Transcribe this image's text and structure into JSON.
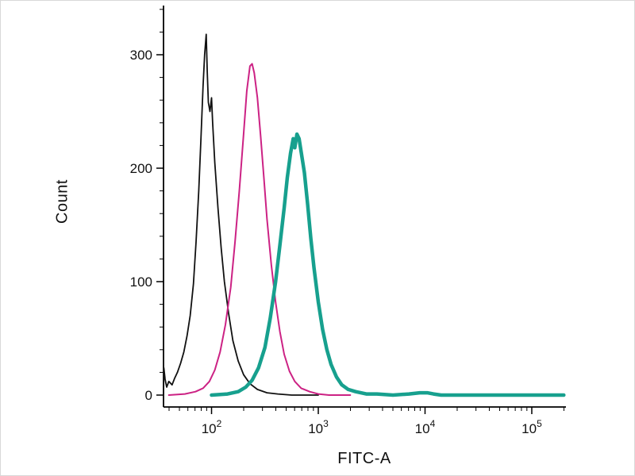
{
  "chart_data": {
    "type": "line",
    "chart_kind": "flow-cytometry-histogram-overlay",
    "title": "",
    "xlabel": "FITC-A",
    "ylabel": "Count",
    "legend": "none",
    "grid": false,
    "x_axis": {
      "scale": "log10",
      "log_min": 1.55,
      "log_max": 5.32,
      "major_tick_exponents": [
        2,
        3,
        4,
        5
      ],
      "tick_label_base": "10"
    },
    "y_axis": {
      "min": 0,
      "max": 340,
      "major_ticks": [
        0,
        100,
        200,
        300
      ],
      "minor_tick_step": 20
    },
    "axis_color": "#000000",
    "series": [
      {
        "name": "black-curve",
        "color": "#111111",
        "stroke_width": 1.8,
        "points": [
          [
            1.55,
            0
          ],
          [
            1.553,
            24
          ],
          [
            1.565,
            14
          ],
          [
            1.58,
            7
          ],
          [
            1.6,
            12
          ],
          [
            1.63,
            9
          ],
          [
            1.655,
            15
          ],
          [
            1.68,
            20
          ],
          [
            1.71,
            28
          ],
          [
            1.74,
            38
          ],
          [
            1.77,
            52
          ],
          [
            1.8,
            70
          ],
          [
            1.83,
            98
          ],
          [
            1.855,
            135
          ],
          [
            1.88,
            180
          ],
          [
            1.9,
            225
          ],
          [
            1.92,
            272
          ],
          [
            1.935,
            300
          ],
          [
            1.95,
            318
          ],
          [
            1.96,
            285
          ],
          [
            1.97,
            258
          ],
          [
            1.985,
            250
          ],
          [
            2.0,
            262
          ],
          [
            2.01,
            240
          ],
          [
            2.03,
            205
          ],
          [
            2.06,
            165
          ],
          [
            2.09,
            130
          ],
          [
            2.12,
            100
          ],
          [
            2.16,
            72
          ],
          [
            2.2,
            48
          ],
          [
            2.25,
            30
          ],
          [
            2.3,
            18
          ],
          [
            2.36,
            10
          ],
          [
            2.43,
            5
          ],
          [
            2.52,
            2
          ],
          [
            2.62,
            1
          ],
          [
            2.75,
            0
          ],
          [
            3.0,
            0
          ]
        ]
      },
      {
        "name": "magenta-curve",
        "color": "#cc2284",
        "stroke_width": 2,
        "points": [
          [
            1.6,
            0
          ],
          [
            1.75,
            1
          ],
          [
            1.85,
            3
          ],
          [
            1.92,
            6
          ],
          [
            1.98,
            12
          ],
          [
            2.03,
            22
          ],
          [
            2.08,
            38
          ],
          [
            2.13,
            62
          ],
          [
            2.18,
            95
          ],
          [
            2.22,
            135
          ],
          [
            2.26,
            180
          ],
          [
            2.3,
            230
          ],
          [
            2.33,
            268
          ],
          [
            2.36,
            290
          ],
          [
            2.38,
            292
          ],
          [
            2.4,
            284
          ],
          [
            2.43,
            262
          ],
          [
            2.46,
            228
          ],
          [
            2.49,
            192
          ],
          [
            2.52,
            155
          ],
          [
            2.56,
            115
          ],
          [
            2.6,
            82
          ],
          [
            2.64,
            56
          ],
          [
            2.68,
            36
          ],
          [
            2.73,
            21
          ],
          [
            2.78,
            12
          ],
          [
            2.84,
            6
          ],
          [
            2.92,
            3
          ],
          [
            3.0,
            1
          ],
          [
            3.1,
            0
          ],
          [
            3.3,
            0
          ]
        ]
      },
      {
        "name": "teal-curve",
        "color": "#17a08e",
        "stroke_width": 4.5,
        "points": [
          [
            2.0,
            0
          ],
          [
            2.15,
            1
          ],
          [
            2.25,
            3
          ],
          [
            2.32,
            7
          ],
          [
            2.38,
            13
          ],
          [
            2.44,
            24
          ],
          [
            2.5,
            42
          ],
          [
            2.55,
            68
          ],
          [
            2.6,
            100
          ],
          [
            2.64,
            132
          ],
          [
            2.68,
            165
          ],
          [
            2.71,
            192
          ],
          [
            2.74,
            213
          ],
          [
            2.765,
            226
          ],
          [
            2.78,
            218
          ],
          [
            2.8,
            230
          ],
          [
            2.82,
            226
          ],
          [
            2.84,
            214
          ],
          [
            2.87,
            196
          ],
          [
            2.9,
            168
          ],
          [
            2.93,
            138
          ],
          [
            2.96,
            112
          ],
          [
            3.0,
            82
          ],
          [
            3.04,
            58
          ],
          [
            3.08,
            40
          ],
          [
            3.12,
            27
          ],
          [
            3.17,
            16
          ],
          [
            3.22,
            9
          ],
          [
            3.28,
            5
          ],
          [
            3.35,
            3
          ],
          [
            3.45,
            1
          ],
          [
            3.55,
            1
          ],
          [
            3.7,
            0
          ],
          [
            3.85,
            1
          ],
          [
            3.95,
            2
          ],
          [
            4.02,
            2
          ],
          [
            4.08,
            1
          ],
          [
            4.15,
            0
          ],
          [
            5.3,
            0
          ]
        ]
      }
    ]
  }
}
